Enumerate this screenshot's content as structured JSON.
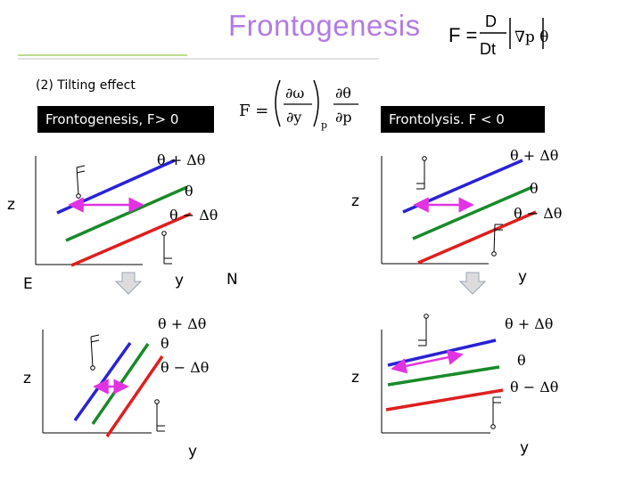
{
  "title": "Frontogenesis",
  "subtitle": "(2) Tilting effect",
  "boxes": {
    "left": "Frontogenesis, F> 0",
    "right": "Frontolysis. F < 0"
  },
  "equations": {
    "top": {
      "lhs": "F =",
      "num": "D",
      "den": "Dt",
      "grad": "∇p θ"
    },
    "mid": {
      "lhs": "F =",
      "a_num": "∂ω",
      "a_den": "∂y",
      "a_sub": "p",
      "b_num": "∂θ",
      "b_den": "∂p"
    }
  },
  "isentropes": {
    "upper": "θ + Δθ",
    "middle": "θ",
    "lower": "θ − Δθ"
  },
  "axes": {
    "z": "z",
    "y": "y",
    "east": "E",
    "north": "N"
  },
  "colors": {
    "theta_plus": "#2a22d6",
    "theta": "#1a8a2a",
    "theta_minus": "#e01e1e",
    "arrow": "#e233e2",
    "title": "#b37be6"
  }
}
